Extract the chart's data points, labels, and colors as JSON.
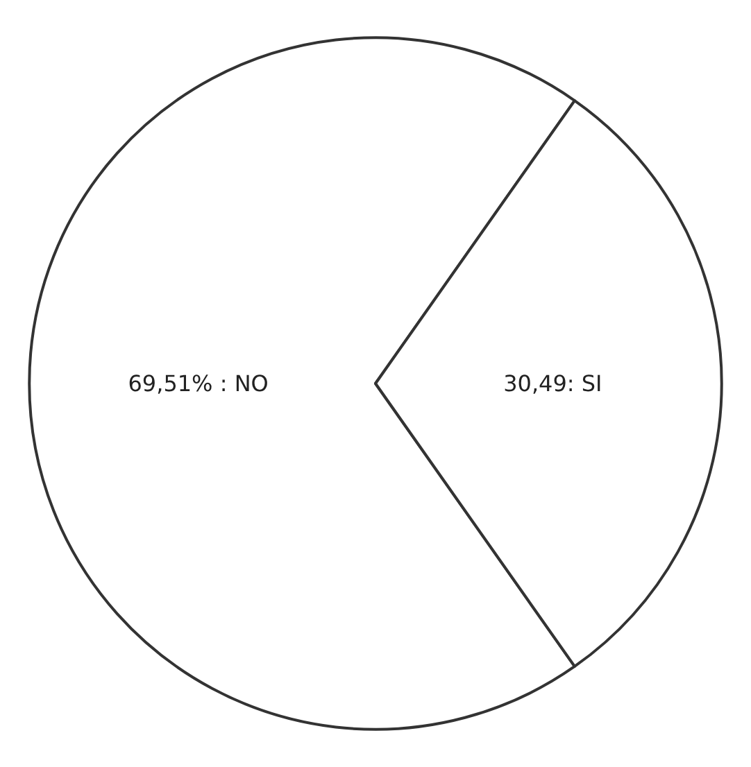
{
  "chart_data": {
    "type": "pie",
    "categories": [
      "NO",
      "SI"
    ],
    "values": [
      69.51,
      30.49
    ],
    "colors": [
      "#ffffff",
      "#ffffff"
    ],
    "value_labels": [
      "69,51% :",
      "30,49:"
    ]
  }
}
